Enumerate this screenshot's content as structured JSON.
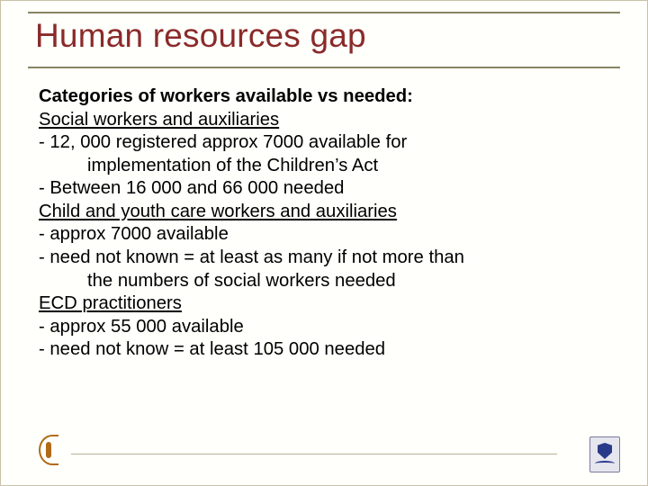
{
  "colors": {
    "background": "#fffffb",
    "border": "#c9c2a8",
    "rule": "#8a8565",
    "title": "#8a2a2a",
    "text": "#000000",
    "footer_line": "#b8b296",
    "logo_left": "#b06a1a",
    "logo_right_bg": "#e6e6ef",
    "logo_right_fg": "#2a3a8a"
  },
  "typography": {
    "title_fontsize": 37,
    "body_fontsize": 20.3,
    "font_family": "Trebuchet MS"
  },
  "title": "Human resources gap",
  "body": {
    "heading": "Categories of workers available vs needed:",
    "sections": [
      {
        "label": "Social workers and auxiliaries",
        "bullets": [
          {
            "line1": "- 12, 000 registered approx 7000 available for",
            "cont": "implementation of the Children’s Act"
          },
          {
            "line1": "- Between 16 000 and 66 000 needed"
          }
        ]
      },
      {
        "label": "Child and youth care workers and auxiliaries",
        "bullets": [
          {
            "line1": "- approx 7000 available"
          },
          {
            "line1": "- need not known = at least as many if not more than",
            "cont": "the numbers of social workers needed"
          }
        ]
      },
      {
        "label": "ECD practitioners",
        "bullets": [
          {
            "line1": "- approx 55 000 available"
          },
          {
            "line1": "- need not know = at least 105 000 needed"
          }
        ]
      }
    ]
  }
}
